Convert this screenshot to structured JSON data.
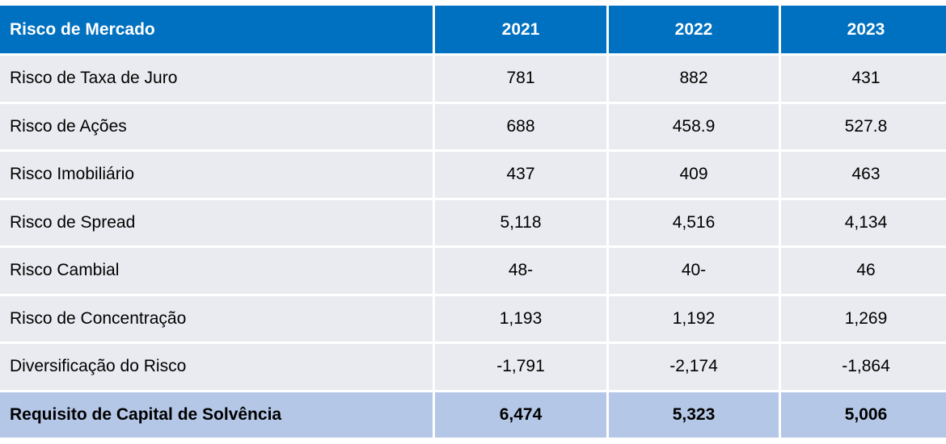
{
  "table": {
    "header": [
      "Risco de Mercado",
      "2021",
      "2022",
      "2023"
    ],
    "rows": [
      [
        "Risco de Taxa de Juro",
        "781",
        "882",
        "431"
      ],
      [
        "Risco de Ações",
        "688",
        "458.9",
        "527.8"
      ],
      [
        "Risco Imobiliário",
        "437",
        "409",
        "463"
      ],
      [
        "Risco de Spread",
        "5,118",
        "4,516",
        "4,134"
      ],
      [
        "Risco Cambial",
        "48-",
        "40-",
        "46"
      ],
      [
        "Risco de Concentração",
        "1,193",
        "1,192",
        "1,269"
      ],
      [
        "Diversificação do Risco",
        "-1,791",
        "-2,174",
        "-1,864"
      ]
    ],
    "total": [
      "Requisito de Capital de Solvência",
      "6,474",
      "5,323",
      "5,006"
    ]
  }
}
